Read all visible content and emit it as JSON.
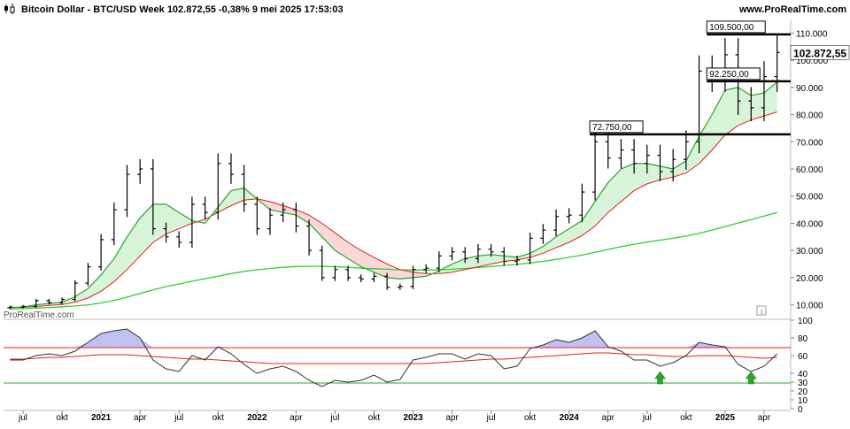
{
  "header": {
    "title": "Bitcoin Dollar - BTC/USD Week 102.872,55 -0,38% 9 mei 2025 17:53:03",
    "brand_url": "www.ProRealTime.com"
  },
  "watermark": "ProRealTime.com",
  "info_icon": "info-icon",
  "colors": {
    "candle": "#000000",
    "ma_short": "#2aa52a",
    "ma_mid": "#e02020",
    "ma_long": "#33cc33",
    "fill_green": "#c8f0c8",
    "fill_red": "#f5c8c8",
    "rsi_line": "#333333",
    "rsi_upper": "#e02020",
    "rsi_lower": "#2aa52a",
    "rsi_fill": "#b0b0f0",
    "arrow": "#2aa52a"
  },
  "chart_data": [
    {
      "type": "line",
      "name": "price",
      "title": "Bitcoin Dollar - BTC/USD Week",
      "x": [
        "2020-06",
        "2020-07",
        "2020-08",
        "2020-09",
        "2020-10",
        "2020-11",
        "2020-12",
        "2021-01",
        "2021-02",
        "2021-03",
        "2021-04",
        "2021-05",
        "2021-06",
        "2021-07",
        "2021-08",
        "2021-09",
        "2021-10",
        "2021-11",
        "2021-12",
        "2022-01",
        "2022-02",
        "2022-03",
        "2022-04",
        "2022-05",
        "2022-06",
        "2022-07",
        "2022-08",
        "2022-09",
        "2022-10",
        "2022-11",
        "2022-12",
        "2023-01",
        "2023-02",
        "2023-03",
        "2023-04",
        "2023-05",
        "2023-06",
        "2023-07",
        "2023-08",
        "2023-09",
        "2023-10",
        "2023-11",
        "2023-12",
        "2024-01",
        "2024-02",
        "2024-03",
        "2024-04",
        "2024-05",
        "2024-06",
        "2024-07",
        "2024-08",
        "2024-09",
        "2024-10",
        "2024-11",
        "2024-12",
        "2025-01",
        "2025-02",
        "2025-03",
        "2025-04",
        "2025-05"
      ],
      "y": [
        9200,
        9400,
        11500,
        10800,
        12000,
        18000,
        24000,
        34000,
        45000,
        58000,
        60000,
        38000,
        35000,
        33000,
        47000,
        44000,
        62000,
        58000,
        47000,
        38000,
        43000,
        45000,
        39000,
        30000,
        20000,
        23000,
        20000,
        19500,
        20500,
        16500,
        16800,
        23000,
        23500,
        28000,
        29500,
        27000,
        30500,
        29500,
        26000,
        26500,
        34500,
        37500,
        42500,
        43000,
        51500,
        70000,
        64000,
        67000,
        62000,
        65000,
        59000,
        63500,
        70000,
        96000,
        94000,
        102000,
        85000,
        82500,
        94000,
        102872.55
      ],
      "ohlc_note": "weekly candles",
      "ylim": [
        5000,
        115000
      ],
      "yticks": [
        "10.000",
        "20.000",
        "30.000",
        "40.000",
        "50.000",
        "60.000",
        "70.000",
        "80.000",
        "90.000",
        "100.000",
        "110.000"
      ],
      "xticks": [
        {
          "x": "2020-07",
          "label": "jul"
        },
        {
          "x": "2020-10",
          "label": "okt"
        },
        {
          "x": "2021-01",
          "label": "2021"
        },
        {
          "x": "2021-04",
          "label": "apr"
        },
        {
          "x": "2021-07",
          "label": "jul"
        },
        {
          "x": "2021-10",
          "label": "okt"
        },
        {
          "x": "2022-01",
          "label": "2022"
        },
        {
          "x": "2022-04",
          "label": "apr"
        },
        {
          "x": "2022-07",
          "label": "jul"
        },
        {
          "x": "2022-10",
          "label": "okt"
        },
        {
          "x": "2023-01",
          "label": "2023"
        },
        {
          "x": "2023-04",
          "label": "apr"
        },
        {
          "x": "2023-07",
          "label": "jul"
        },
        {
          "x": "2023-10",
          "label": "okt"
        },
        {
          "x": "2024-01",
          "label": "2024"
        },
        {
          "x": "2024-04",
          "label": "apr"
        },
        {
          "x": "2024-07",
          "label": "jul"
        },
        {
          "x": "2024-10",
          "label": "okt"
        },
        {
          "x": "2025-01",
          "label": "2025"
        },
        {
          "x": "2025-04",
          "label": "apr"
        }
      ],
      "horizontal_levels": [
        {
          "value": 109500,
          "label": "109.500,00",
          "from": "2024-12"
        },
        {
          "value": 92250,
          "label": "92.250,00",
          "from": "2024-12"
        },
        {
          "value": 72750,
          "label": "72.750,00",
          "from": "2024-03"
        }
      ],
      "last_price_label": "102.872,55",
      "moving_averages": [
        {
          "y": [
            9000,
            9200,
            10000,
            10500,
            11000,
            13000,
            16000,
            21000,
            27000,
            35000,
            42000,
            47000,
            47000,
            44000,
            41000,
            40000,
            46000,
            52000,
            53000,
            49000,
            45000,
            44000,
            43000,
            40000,
            35000,
            30000,
            27000,
            24000,
            22000,
            20000,
            19500,
            20000,
            20500,
            22500,
            25000,
            27000,
            28000,
            28500,
            28000,
            27500,
            29000,
            31500,
            35000,
            38000,
            41000,
            48000,
            55000,
            60000,
            62000,
            62000,
            61000,
            60000,
            63000,
            72000,
            80000,
            89000,
            90000,
            87000,
            88000,
            92000
          ]
        },
        {
          "y": [
            9000,
            9100,
            9400,
            9800,
            10100,
            11000,
            12500,
            15000,
            18500,
            23000,
            28000,
            33000,
            36000,
            38000,
            40000,
            41500,
            44000,
            46500,
            48500,
            49000,
            48000,
            46500,
            45000,
            43000,
            40000,
            36500,
            33000,
            30000,
            27500,
            25000,
            23000,
            22000,
            21500,
            21500,
            22000,
            23000,
            24000,
            25000,
            26000,
            26500,
            27500,
            29000,
            31000,
            33000,
            35500,
            39000,
            44000,
            48000,
            52000,
            54500,
            56000,
            57000,
            58500,
            62000,
            67000,
            72500,
            76000,
            78000,
            79500,
            81000
          ]
        },
        {
          "y": [
            8500,
            8600,
            8800,
            9000,
            9300,
            9600,
            10000,
            10700,
            11600,
            12800,
            14200,
            15500,
            16700,
            17700,
            18700,
            19600,
            20600,
            21500,
            22300,
            22900,
            23400,
            23800,
            24100,
            24200,
            24200,
            24000,
            23800,
            23500,
            23300,
            23100,
            22900,
            22800,
            22800,
            22900,
            23100,
            23400,
            23700,
            24100,
            24500,
            24900,
            25400,
            26000,
            26700,
            27500,
            28300,
            29300,
            30400,
            31400,
            32300,
            33100,
            33800,
            34500,
            35300,
            36300,
            37500,
            38800,
            40100,
            41400,
            42700,
            44000
          ]
        }
      ],
      "subtitle": "",
      "xlabel": "",
      "ylabel": ""
    },
    {
      "type": "line",
      "name": "oscillator",
      "y": [
        55,
        55,
        60,
        62,
        60,
        65,
        75,
        85,
        88,
        90,
        80,
        55,
        45,
        42,
        60,
        55,
        70,
        62,
        50,
        40,
        45,
        48,
        42,
        32,
        25,
        32,
        30,
        32,
        38,
        30,
        33,
        55,
        58,
        62,
        62,
        56,
        62,
        60,
        45,
        48,
        68,
        72,
        78,
        75,
        80,
        88,
        70,
        65,
        55,
        55,
        48,
        52,
        60,
        75,
        72,
        70,
        50,
        42,
        48,
        62
      ],
      "ylim": [
        0,
        100
      ],
      "yticks": [
        "0",
        "10",
        "20",
        "30",
        "40",
        "60",
        "80",
        "100"
      ],
      "upper_line": 69,
      "lower_line": 29,
      "signal_y": [
        56,
        56,
        57,
        58,
        58,
        59,
        60,
        61,
        61,
        61,
        60,
        59,
        58,
        57,
        56,
        56,
        55,
        54,
        53,
        52,
        51,
        51,
        51,
        51,
        51,
        51,
        51,
        51,
        51,
        51,
        51,
        51,
        51,
        52,
        53,
        54,
        55,
        56,
        56,
        57,
        58,
        59,
        60,
        61,
        62,
        63,
        63,
        62,
        61,
        61,
        60,
        59,
        59,
        60,
        60,
        60,
        59,
        58,
        57,
        58
      ],
      "arrows": [
        "2024-08",
        "2025-03"
      ]
    }
  ]
}
